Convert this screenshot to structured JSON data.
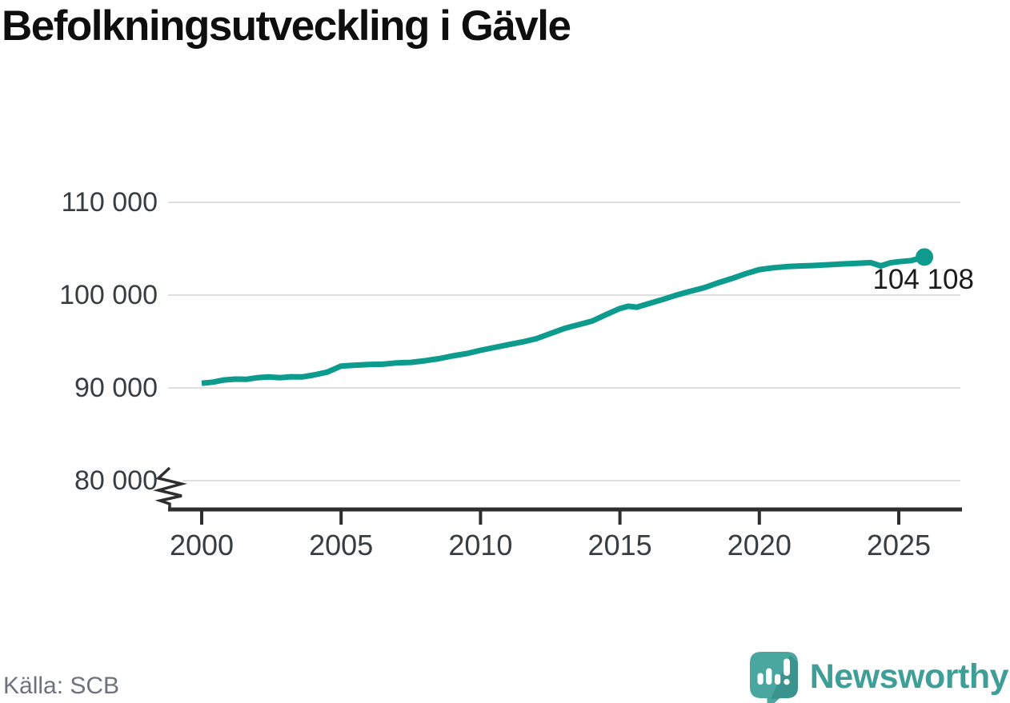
{
  "title": "Befolkningsutveckling i Gävle",
  "source": "Källa: SCB",
  "brand": {
    "name": "Newsworthy"
  },
  "colors": {
    "line": "#0c9b8d",
    "grid": "#dfdfdf",
    "axis": "#2e2e2e",
    "title_text": "#0e0e0e",
    "tick_text": "#383d42",
    "label_text": "#1b1b1b",
    "source_text": "#6f727b",
    "logo_bubble": "#4aa7a0",
    "logo_shade": "#3a948d",
    "logo_text": "#3f9e98"
  },
  "chart_data": {
    "type": "line",
    "title": "Befolkningsutveckling i Gävle",
    "xlabel": "",
    "ylabel": "",
    "grid": "horizontal",
    "legend": "none",
    "axis_break": true,
    "xlim": [
      1998.8,
      2027.2
    ],
    "ylim": [
      78000,
      112000
    ],
    "x": [
      2000,
      2000.4,
      2000.8,
      2001.2,
      2001.6,
      2002,
      2002.4,
      2002.8,
      2003.2,
      2003.6,
      2004,
      2004.5,
      2005,
      2005.5,
      2006,
      2006.5,
      2007,
      2007.5,
      2008,
      2008.5,
      2009,
      2009.5,
      2010,
      2010.5,
      2011,
      2011.5,
      2012,
      2012.5,
      2013,
      2013.5,
      2014,
      2014.5,
      2015,
      2015.3,
      2015.6,
      2016,
      2016.5,
      2017,
      2017.5,
      2018,
      2018.5,
      2019,
      2019.5,
      2020,
      2020.5,
      2021,
      2021.5,
      2022,
      2022.5,
      2023,
      2023.5,
      2024,
      2024.35,
      2024.7,
      2025,
      2025.45,
      2025.92
    ],
    "values": [
      90500,
      90620,
      90850,
      90950,
      90920,
      91100,
      91180,
      91100,
      91200,
      91180,
      91380,
      91700,
      92350,
      92450,
      92520,
      92550,
      92700,
      92750,
      92920,
      93150,
      93450,
      93700,
      94050,
      94350,
      94660,
      94950,
      95300,
      95850,
      96400,
      96800,
      97200,
      97900,
      98560,
      98800,
      98700,
      99050,
      99500,
      99970,
      100400,
      100780,
      101300,
      101780,
      102300,
      102750,
      102950,
      103080,
      103150,
      103200,
      103280,
      103360,
      103420,
      103500,
      103150,
      103480,
      103600,
      103720,
      104108
    ],
    "end_label": "104 108",
    "end_value": 104108,
    "y_ticks": [
      {
        "value": 110000,
        "label": "110 000"
      },
      {
        "value": 100000,
        "label": "100 000"
      },
      {
        "value": 90000,
        "label": "90 000"
      },
      {
        "value": 80000,
        "label": "80 000"
      }
    ],
    "x_ticks": [
      {
        "value": 2000,
        "label": "2000"
      },
      {
        "value": 2005,
        "label": "2005"
      },
      {
        "value": 2010,
        "label": "2010"
      },
      {
        "value": 2015,
        "label": "2015"
      },
      {
        "value": 2020,
        "label": "2020"
      },
      {
        "value": 2025,
        "label": "2025"
      }
    ]
  }
}
